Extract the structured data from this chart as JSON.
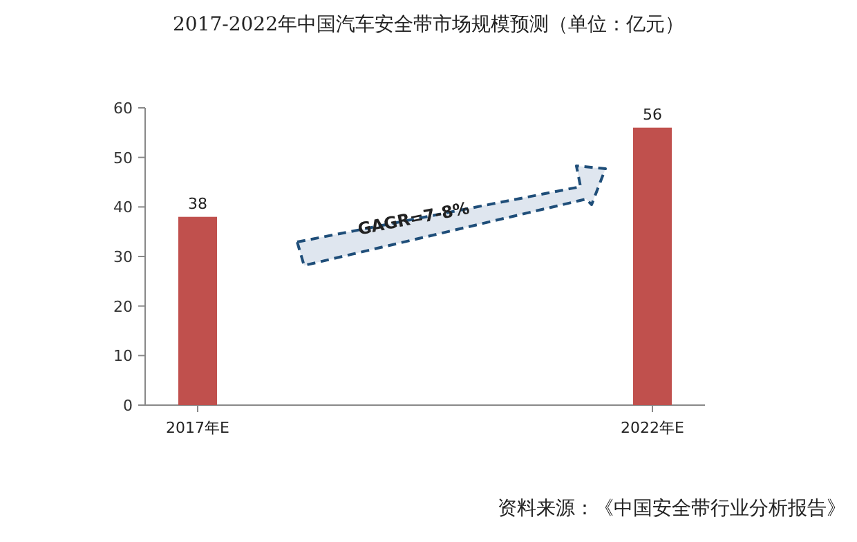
{
  "chart_data": {
    "type": "bar",
    "title": "2017-2022年中国汽车安全带市场规模预测（单位：亿元）",
    "categories": [
      "2017年E",
      "2022年E"
    ],
    "values": [
      38,
      56
    ],
    "color": "#c0504d",
    "ylim": [
      0,
      60
    ],
    "yticks": [
      0,
      10,
      20,
      30,
      40,
      50,
      60
    ],
    "data_labels": true,
    "annotations": [
      "GAGR=7-8%",
      "资料来源：《中国安全带行业分析报告》"
    ]
  }
}
